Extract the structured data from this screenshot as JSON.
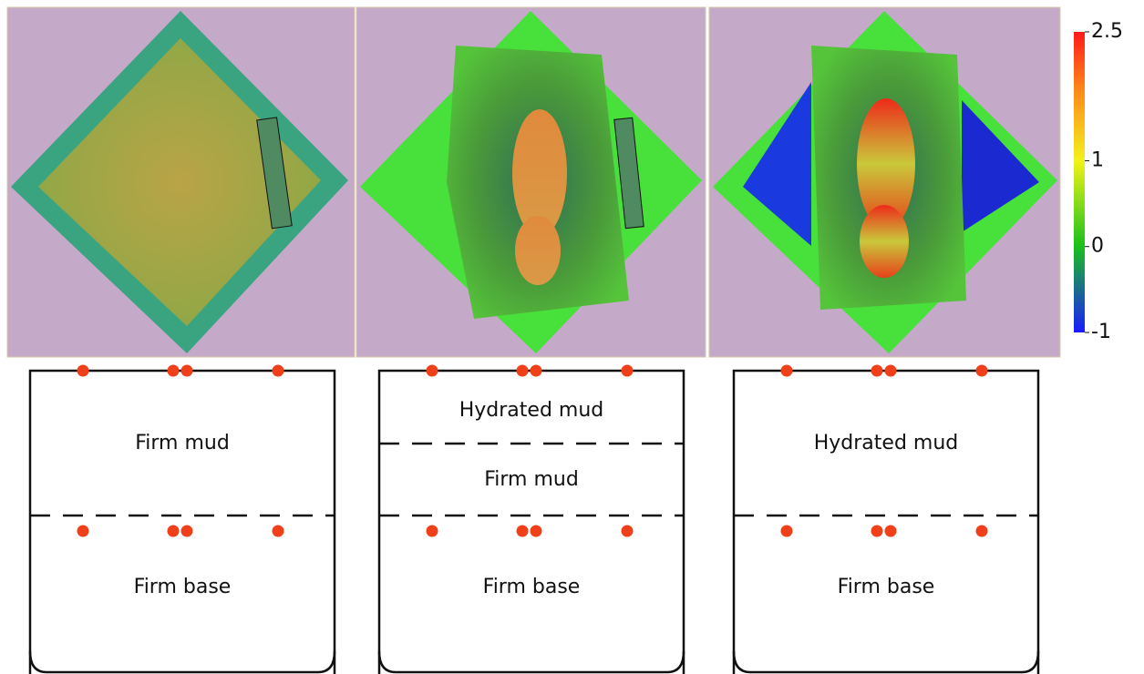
{
  "colorbar": {
    "lim": [
      -1,
      2.5
    ],
    "ticks": [
      2.5,
      1,
      0,
      -1
    ]
  },
  "panels": [
    {
      "layers": [
        "Firm mud",
        "Firm base"
      ]
    },
    {
      "layers": [
        "Hydrated mud",
        "Firm mud",
        "Firm base"
      ]
    },
    {
      "layers": [
        "Hydrated mud",
        "Firm base"
      ]
    }
  ]
}
